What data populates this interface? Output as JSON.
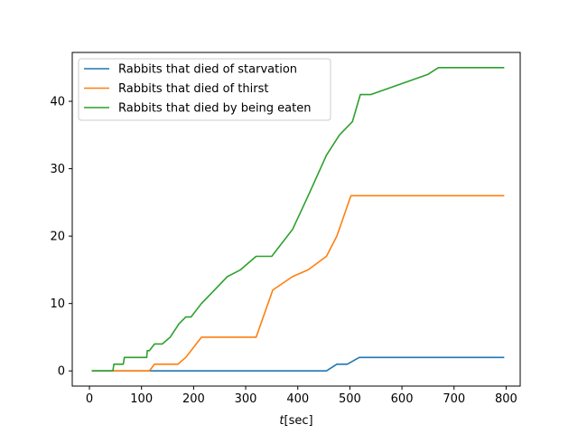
{
  "chart_data": {
    "type": "line",
    "title": "",
    "xlabel": "t[sec]",
    "xlabel_parts": {
      "italic": "t",
      "bracketed": "[sec]"
    },
    "ylabel": "",
    "xlim": [
      -33,
      827
    ],
    "ylim": [
      -2.25,
      47.25
    ],
    "x_ticks": [
      0,
      100,
      200,
      300,
      400,
      500,
      600,
      700,
      800
    ],
    "y_ticks": [
      0,
      10,
      20,
      30,
      40
    ],
    "grid": false,
    "legend_position": "top-left",
    "series": [
      {
        "name": "Rabbits that died of starvation",
        "color": "#1f77b4",
        "x": [
          6,
          455,
          475,
          495,
          518,
          795
        ],
        "y": [
          0,
          0,
          1,
          1,
          2,
          2
        ]
      },
      {
        "name": "Rabbits that died of thirst",
        "color": "#ff7f0e",
        "x": [
          6,
          115,
          125,
          170,
          185,
          195,
          215,
          320,
          352,
          390,
          420,
          455,
          475,
          502,
          795
        ],
        "y": [
          0,
          0,
          1,
          1,
          2,
          3,
          5,
          5,
          12,
          14,
          15,
          17,
          20,
          26,
          26
        ]
      },
      {
        "name": "Rabbits that died by being eaten",
        "color": "#2ca02c",
        "x": [
          6,
          45,
          47,
          65,
          67,
          110,
          111,
          115,
          125,
          140,
          155,
          172,
          185,
          195,
          215,
          240,
          265,
          290,
          320,
          350,
          390,
          420,
          455,
          480,
          505,
          520,
          540,
          650,
          670,
          795
        ],
        "y": [
          0,
          0,
          1,
          1,
          2,
          2,
          3,
          3,
          4,
          4,
          5,
          7,
          8,
          8,
          10,
          12,
          14,
          15,
          17,
          17,
          21,
          26,
          32,
          35,
          37,
          41,
          41,
          44,
          45,
          45
        ]
      }
    ]
  }
}
